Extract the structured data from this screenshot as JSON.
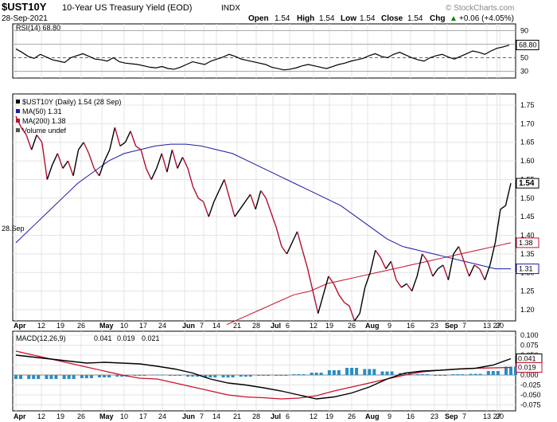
{
  "header": {
    "symbol": "$UST10Y",
    "description": "10-Year US Treasury Yield (EOD)",
    "exchange": "INDX",
    "watermark": "© StockCharts.com",
    "date": "28-Sep-2021",
    "ohlc": {
      "open_label": "Open",
      "open": "1.54",
      "high_label": "High",
      "high": "1.54",
      "low_label": "Low",
      "low": "1.54",
      "close_label": "Close",
      "close": "1.54",
      "chg_label": "Chg",
      "chg": "+0.06 (+4.05%)"
    },
    "up_arrow": "▲"
  },
  "rsi": {
    "label": "RSI(14) 68.80",
    "last": "68.80",
    "ticks": [
      "90",
      "70",
      "50",
      "30"
    ],
    "values": [
      63,
      58,
      52,
      49,
      55,
      51,
      47,
      45,
      43,
      50,
      53,
      56,
      52,
      48,
      47,
      45,
      50,
      44,
      42,
      41,
      40,
      38,
      36,
      35,
      37,
      34,
      33,
      36,
      40,
      44,
      42,
      40,
      45,
      48,
      51,
      55,
      52,
      48,
      46,
      44,
      42,
      40,
      36,
      34,
      32,
      33,
      35,
      38,
      40,
      38,
      36,
      34,
      37,
      40,
      42,
      45,
      47,
      49,
      53,
      56,
      52,
      50,
      55,
      58,
      54,
      50,
      47,
      45,
      50,
      53,
      55,
      51,
      48,
      52,
      56,
      60,
      58,
      55,
      60,
      64,
      66,
      68.8
    ],
    "color_line": "#000000"
  },
  "price": {
    "legend": [
      {
        "label": "$UST10Y (Daily) 1.54 (28 Sep)",
        "color": "#000000"
      },
      {
        "label": "MA(50) 1.31",
        "color": "#1a1aa6"
      },
      {
        "label": "MA(200) 1.38",
        "color": "#c8102e"
      },
      {
        "label": "Volume undef",
        "color": "#555555"
      }
    ],
    "ticks": [
      "1.75",
      "1.70",
      "1.65",
      "1.60",
      "1.55",
      "1.50",
      "1.45",
      "1.40",
      "1.35",
      "1.30",
      "1.25",
      "1.20"
    ],
    "left_label": "28.Sep",
    "labels": {
      "last": "1.54",
      "ma200": "1.38",
      "ma50": "1.31"
    },
    "colors": {
      "price": "#000000",
      "price_down": "#b0102e",
      "ma50": "#1a1aa6",
      "ma200": "#c8102e"
    }
  },
  "macd": {
    "label": "MACD(12,26,9)",
    "macd": "0.041",
    "signal": "0.019",
    "hist": "0.021",
    "ticks": [
      "0.100",
      "0.075",
      "0.050",
      "0.025",
      "0.000",
      "-0.025",
      "-0.050",
      "-0.075"
    ],
    "labels": {
      "macd": "0.041",
      "signal": "0.019"
    },
    "colors": {
      "macd": "#000000",
      "signal": "#c8102e",
      "hist": "#2b8cc4"
    }
  },
  "xaxis": [
    "Apr",
    "12",
    "19",
    "26",
    "May",
    "10",
    "17",
    "24",
    "Jun",
    "7",
    "14",
    "21",
    "28",
    "Jul",
    "6",
    "12",
    "19",
    "26",
    "Aug",
    "9",
    "16",
    "23",
    "Sep",
    "7",
    "13",
    "20",
    "27"
  ],
  "chart_data": [
    {
      "type": "line",
      "title": "$UST10Y 10-Year US Treasury Yield (EOD)",
      "x_range": [
        "2021-04-01",
        "2021-09-28"
      ],
      "ylim": [
        1.17,
        1.78
      ],
      "series": [
        {
          "name": "$UST10Y",
          "values": [
            1.72,
            1.69,
            1.67,
            1.63,
            1.67,
            1.65,
            1.55,
            1.59,
            1.62,
            1.58,
            1.6,
            1.56,
            1.63,
            1.65,
            1.62,
            1.58,
            1.56,
            1.6,
            1.63,
            1.69,
            1.64,
            1.65,
            1.68,
            1.64,
            1.63,
            1.58,
            1.55,
            1.58,
            1.62,
            1.57,
            1.63,
            1.58,
            1.61,
            1.58,
            1.53,
            1.5,
            1.49,
            1.45,
            1.49,
            1.52,
            1.55,
            1.5,
            1.45,
            1.47,
            1.49,
            1.51,
            1.47,
            1.52,
            1.5,
            1.46,
            1.42,
            1.37,
            1.35,
            1.38,
            1.41,
            1.36,
            1.31,
            1.25,
            1.19,
            1.24,
            1.29,
            1.27,
            1.24,
            1.22,
            1.21,
            1.17,
            1.19,
            1.26,
            1.3,
            1.36,
            1.34,
            1.31,
            1.33,
            1.28,
            1.26,
            1.27,
            1.25,
            1.29,
            1.35,
            1.33,
            1.29,
            1.31,
            1.32,
            1.28,
            1.35,
            1.37,
            1.33,
            1.29,
            1.32,
            1.31,
            1.28,
            1.32,
            1.38,
            1.47,
            1.48,
            1.54
          ]
        },
        {
          "name": "MA(50)",
          "values": [
            1.38,
            1.42,
            1.46,
            1.5,
            1.54,
            1.57,
            1.6,
            1.62,
            1.63,
            1.64,
            1.645,
            1.645,
            1.64,
            1.63,
            1.62,
            1.6,
            1.58,
            1.56,
            1.54,
            1.52,
            1.5,
            1.48,
            1.45,
            1.42,
            1.39,
            1.37,
            1.36,
            1.35,
            1.34,
            1.33,
            1.32,
            1.31,
            1.31
          ]
        },
        {
          "name": "MA(200)",
          "values": [
            1.16,
            1.18,
            1.2,
            1.22,
            1.24,
            1.25,
            1.27,
            1.28,
            1.29,
            1.3,
            1.31,
            1.32,
            1.33,
            1.34,
            1.35,
            1.36,
            1.37,
            1.38
          ]
        }
      ]
    },
    {
      "type": "line",
      "title": "RSI(14)",
      "ylim": [
        20,
        100
      ],
      "series": [
        {
          "name": "RSI(14)",
          "values": [
            63,
            58,
            52,
            49,
            55,
            51,
            47,
            45,
            43,
            50,
            53,
            56,
            52,
            48,
            47,
            45,
            50,
            44,
            42,
            41,
            40,
            38,
            36,
            35,
            37,
            34,
            33,
            36,
            40,
            44,
            42,
            40,
            45,
            48,
            51,
            55,
            52,
            48,
            46,
            44,
            42,
            40,
            36,
            34,
            32,
            33,
            35,
            38,
            40,
            38,
            36,
            34,
            37,
            40,
            42,
            45,
            47,
            49,
            53,
            56,
            52,
            50,
            55,
            58,
            54,
            50,
            47,
            45,
            50,
            53,
            55,
            51,
            48,
            52,
            56,
            60,
            58,
            55,
            60,
            64,
            66,
            68.8
          ]
        }
      ]
    },
    {
      "type": "line",
      "title": "MACD(12,26,9)",
      "ylim": [
        -0.09,
        0.11
      ],
      "series": [
        {
          "name": "MACD",
          "values": [
            0.05,
            0.045,
            0.04,
            0.035,
            0.03,
            0.032,
            0.03,
            0.028,
            0.022,
            0.015,
            0.005,
            -0.01,
            -0.02,
            -0.025,
            -0.032,
            -0.04,
            -0.05,
            -0.06,
            -0.055,
            -0.045,
            -0.03,
            -0.01,
            0.005,
            0.01,
            0.012,
            0.015,
            0.017,
            0.025,
            0.041
          ]
        },
        {
          "name": "Signal",
          "values": [
            0.06,
            0.05,
            0.04,
            0.03,
            0.02,
            0.01,
            0.0,
            -0.008,
            -0.01,
            -0.02,
            -0.03,
            -0.04,
            -0.05,
            -0.055,
            -0.057,
            -0.06,
            -0.058,
            -0.052,
            -0.04,
            -0.03,
            -0.02,
            -0.01,
            0.0,
            0.008,
            0.012,
            0.015,
            0.017,
            0.018,
            0.019
          ]
        },
        {
          "name": "Histogram",
          "values": [
            -0.01,
            -0.01,
            -0.01,
            -0.01,
            -0.008,
            -0.006,
            -0.004,
            -0.002,
            0.001,
            -0.002,
            -0.004,
            -0.006,
            -0.006,
            -0.004,
            -0.002,
            -0.001,
            0.002,
            0.006,
            0.012,
            0.018,
            0.015,
            0.009,
            0.005,
            0.002,
            0.0,
            0.002,
            0.003,
            0.01,
            0.021
          ]
        }
      ]
    }
  ]
}
